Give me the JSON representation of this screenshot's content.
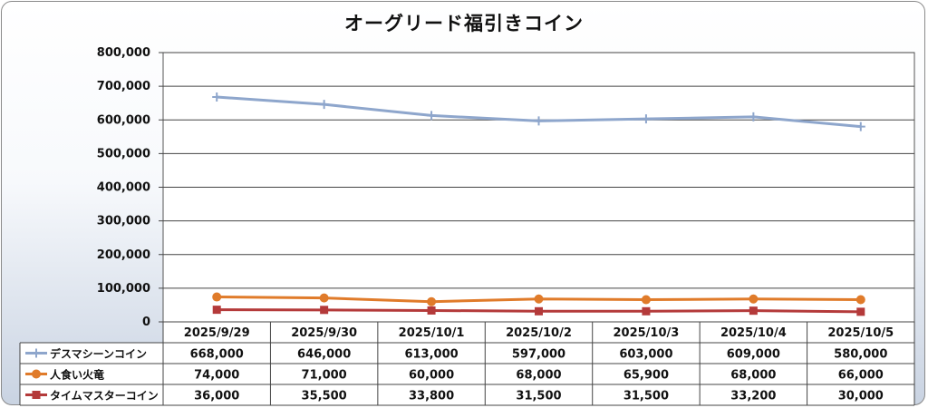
{
  "chart_data": {
    "type": "line",
    "title": "オーグリード福引きコイン",
    "categories": [
      "2025/9/29",
      "2025/9/30",
      "2025/10/1",
      "2025/10/2",
      "2025/10/3",
      "2025/10/4",
      "2025/10/5"
    ],
    "ylim": [
      0,
      800000
    ],
    "yticks": [
      0,
      100000,
      200000,
      300000,
      400000,
      500000,
      600000,
      700000,
      800000
    ],
    "ytick_labels": [
      "0",
      "100,000",
      "200,000",
      "300,000",
      "400,000",
      "500,000",
      "600,000",
      "700,000",
      "800,000"
    ],
    "grid": true,
    "legend_placement": "data table below chart",
    "series": [
      {
        "name": "デスマシーンコイン",
        "color": "#8ea6cc",
        "marker": "plus",
        "values": [
          668000,
          646000,
          613000,
          597000,
          603000,
          609000,
          580000
        ],
        "labels": [
          "668,000",
          "646,000",
          "613,000",
          "597,000",
          "603,000",
          "609,000",
          "580,000"
        ]
      },
      {
        "name": "人食い火竜",
        "color": "#e07b2a",
        "marker": "circle",
        "values": [
          74000,
          71000,
          60000,
          68000,
          65900,
          68000,
          66000
        ],
        "labels": [
          "74,000",
          "71,000",
          "60,000",
          "68,000",
          "65,900",
          "68,000",
          "66,000"
        ]
      },
      {
        "name": "タイムマスターコイン",
        "color": "#b43a3a",
        "marker": "square",
        "values": [
          36000,
          35500,
          33800,
          31500,
          31500,
          33200,
          30000
        ],
        "labels": [
          "36,000",
          "35,500",
          "33,800",
          "31,500",
          "31,500",
          "33,200",
          "30,000"
        ]
      }
    ]
  }
}
